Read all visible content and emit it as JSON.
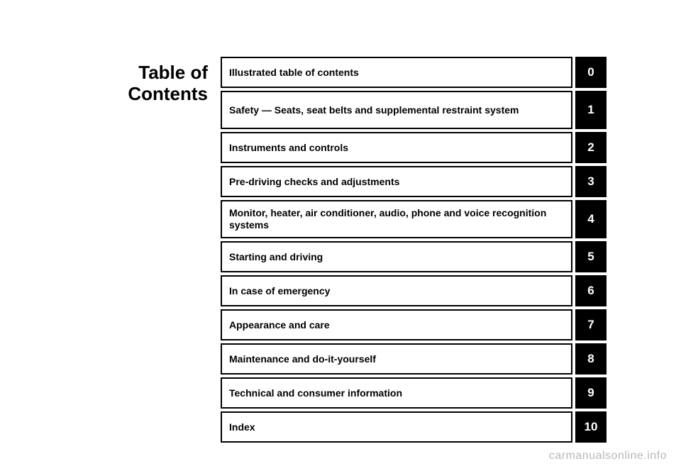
{
  "title_line1": "Table of",
  "title_line2": "Contents",
  "watermark": "carmanualsonline.info",
  "entries": [
    {
      "label": "Illustrated table of contents",
      "num": "0",
      "tall": false
    },
    {
      "label": "Safety — Seats, seat belts and supplemental restraint system",
      "num": "1",
      "tall": true
    },
    {
      "label": "Instruments and controls",
      "num": "2",
      "tall": false
    },
    {
      "label": "Pre-driving checks and adjustments",
      "num": "3",
      "tall": false
    },
    {
      "label": "Monitor, heater, air conditioner, audio, phone and voice recognition systems",
      "num": "4",
      "tall": true
    },
    {
      "label": "Starting and driving",
      "num": "5",
      "tall": false
    },
    {
      "label": "In case of emergency",
      "num": "6",
      "tall": false
    },
    {
      "label": "Appearance and care",
      "num": "7",
      "tall": false
    },
    {
      "label": "Maintenance and do-it-yourself",
      "num": "8",
      "tall": false
    },
    {
      "label": "Technical and consumer information",
      "num": "9",
      "tall": false
    },
    {
      "label": "Index",
      "num": "10",
      "tall": false
    }
  ]
}
